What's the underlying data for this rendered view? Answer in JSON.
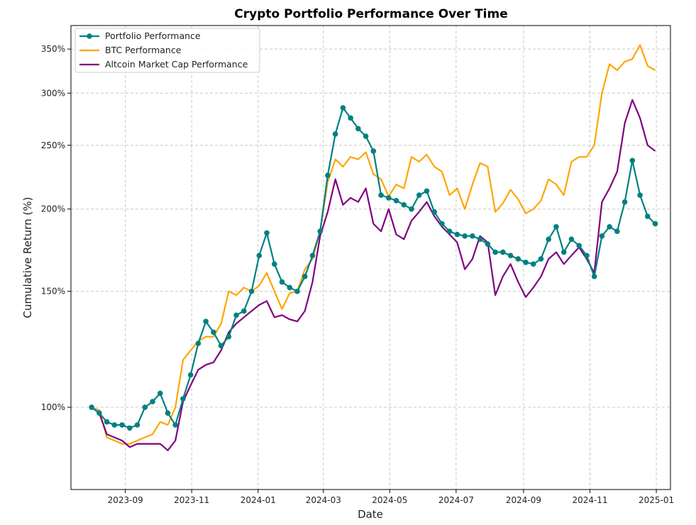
{
  "chart_data": {
    "type": "line",
    "title": "Crypto Portfolio Performance Over Time",
    "xlabel": "Date",
    "ylabel": "Cumulative Return (%)",
    "yscale": "log",
    "ylim": [
      75,
      380
    ],
    "xlim": [
      "2023-07-13",
      "2025-01-14"
    ],
    "grid": true,
    "legend_position": "top-left",
    "x_ticks": [
      {
        "value": "2023-09-01",
        "label": "2023-09"
      },
      {
        "value": "2023-11-01",
        "label": "2023-11"
      },
      {
        "value": "2024-01-01",
        "label": "2024-01"
      },
      {
        "value": "2024-03-01",
        "label": "2024-03"
      },
      {
        "value": "2024-05-01",
        "label": "2024-05"
      },
      {
        "value": "2024-07-01",
        "label": "2024-07"
      },
      {
        "value": "2024-09-01",
        "label": "2024-09"
      },
      {
        "value": "2024-11-01",
        "label": "2024-11"
      },
      {
        "value": "2025-01-01",
        "label": "2025-01"
      }
    ],
    "y_ticks": [
      {
        "value": 100,
        "label": "100%"
      },
      {
        "value": 150,
        "label": "150%"
      },
      {
        "value": 200,
        "label": "200%"
      },
      {
        "value": 250,
        "label": "250%"
      },
      {
        "value": 300,
        "label": "300%"
      },
      {
        "value": 350,
        "label": "350%"
      }
    ],
    "series": [
      {
        "name": "Portfolio Performance",
        "color": "#008080",
        "marker": "circle",
        "points": [
          [
            "2023-08-01",
            100
          ],
          [
            "2023-08-08",
            98
          ],
          [
            "2023-08-15",
            95
          ],
          [
            "2023-08-22",
            94
          ],
          [
            "2023-08-29",
            94
          ],
          [
            "2023-09-05",
            93
          ],
          [
            "2023-09-12",
            94
          ],
          [
            "2023-09-19",
            100
          ],
          [
            "2023-09-26",
            102
          ],
          [
            "2023-10-03",
            105
          ],
          [
            "2023-10-10",
            98
          ],
          [
            "2023-10-17",
            94
          ],
          [
            "2023-10-24",
            103
          ],
          [
            "2023-10-31",
            112
          ],
          [
            "2023-11-07",
            125
          ],
          [
            "2023-11-14",
            135
          ],
          [
            "2023-11-21",
            130
          ],
          [
            "2023-11-28",
            124
          ],
          [
            "2023-12-05",
            128
          ],
          [
            "2023-12-12",
            138
          ],
          [
            "2023-12-19",
            140
          ],
          [
            "2023-12-26",
            150
          ],
          [
            "2024-01-02",
            170
          ],
          [
            "2024-01-09",
            184
          ],
          [
            "2024-01-16",
            165
          ],
          [
            "2024-01-23",
            155
          ],
          [
            "2024-01-30",
            152
          ],
          [
            "2024-02-06",
            150
          ],
          [
            "2024-02-13",
            158
          ],
          [
            "2024-02-20",
            170
          ],
          [
            "2024-02-27",
            185
          ],
          [
            "2024-03-05",
            225
          ],
          [
            "2024-03-12",
            260
          ],
          [
            "2024-03-19",
            285
          ],
          [
            "2024-03-26",
            275
          ],
          [
            "2024-04-02",
            265
          ],
          [
            "2024-04-09",
            258
          ],
          [
            "2024-04-16",
            245
          ],
          [
            "2024-04-23",
            210
          ],
          [
            "2024-04-30",
            208
          ],
          [
            "2024-05-07",
            206
          ],
          [
            "2024-05-14",
            203
          ],
          [
            "2024-05-21",
            200
          ],
          [
            "2024-05-28",
            210
          ],
          [
            "2024-06-04",
            213
          ],
          [
            "2024-06-11",
            198
          ],
          [
            "2024-06-18",
            190
          ],
          [
            "2024-06-25",
            185
          ],
          [
            "2024-07-02",
            183
          ],
          [
            "2024-07-09",
            182
          ],
          [
            "2024-07-16",
            182
          ],
          [
            "2024-07-23",
            180
          ],
          [
            "2024-07-30",
            177
          ],
          [
            "2024-08-06",
            172
          ],
          [
            "2024-08-13",
            172
          ],
          [
            "2024-08-20",
            170
          ],
          [
            "2024-08-27",
            168
          ],
          [
            "2024-09-03",
            166
          ],
          [
            "2024-09-10",
            165
          ],
          [
            "2024-09-17",
            168
          ],
          [
            "2024-09-24",
            180
          ],
          [
            "2024-10-01",
            188
          ],
          [
            "2024-10-08",
            172
          ],
          [
            "2024-10-15",
            180
          ],
          [
            "2024-10-22",
            176
          ],
          [
            "2024-10-29",
            170
          ],
          [
            "2024-11-05",
            158
          ],
          [
            "2024-11-12",
            182
          ],
          [
            "2024-11-19",
            188
          ],
          [
            "2024-11-26",
            185
          ],
          [
            "2024-12-03",
            205
          ],
          [
            "2024-12-10",
            237
          ],
          [
            "2024-12-17",
            210
          ],
          [
            "2024-12-24",
            195
          ],
          [
            "2024-12-31",
            190
          ]
        ]
      },
      {
        "name": "BTC Performance",
        "color": "#FFA500",
        "marker": "none",
        "points": [
          [
            "2023-08-01",
            100
          ],
          [
            "2023-08-08",
            99
          ],
          [
            "2023-08-15",
            90
          ],
          [
            "2023-08-22",
            89
          ],
          [
            "2023-08-29",
            88
          ],
          [
            "2023-09-05",
            88
          ],
          [
            "2023-09-12",
            89
          ],
          [
            "2023-09-19",
            90
          ],
          [
            "2023-09-26",
            91
          ],
          [
            "2023-10-03",
            95
          ],
          [
            "2023-10-10",
            94
          ],
          [
            "2023-10-17",
            100
          ],
          [
            "2023-10-24",
            118
          ],
          [
            "2023-10-31",
            122
          ],
          [
            "2023-11-07",
            126
          ],
          [
            "2023-11-14",
            128
          ],
          [
            "2023-11-21",
            128
          ],
          [
            "2023-11-28",
            134
          ],
          [
            "2023-12-05",
            150
          ],
          [
            "2023-12-12",
            148
          ],
          [
            "2023-12-19",
            152
          ],
          [
            "2023-12-26",
            150
          ],
          [
            "2024-01-02",
            153
          ],
          [
            "2024-01-09",
            160
          ],
          [
            "2024-01-16",
            150
          ],
          [
            "2024-01-23",
            141
          ],
          [
            "2024-01-30",
            149
          ],
          [
            "2024-02-06",
            150
          ],
          [
            "2024-02-13",
            162
          ],
          [
            "2024-02-20",
            168
          ],
          [
            "2024-02-27",
            185
          ],
          [
            "2024-03-05",
            220
          ],
          [
            "2024-03-12",
            238
          ],
          [
            "2024-03-19",
            232
          ],
          [
            "2024-03-26",
            240
          ],
          [
            "2024-04-02",
            238
          ],
          [
            "2024-04-09",
            244
          ],
          [
            "2024-04-16",
            226
          ],
          [
            "2024-04-23",
            222
          ],
          [
            "2024-04-30",
            209
          ],
          [
            "2024-05-07",
            218
          ],
          [
            "2024-05-14",
            215
          ],
          [
            "2024-05-21",
            240
          ],
          [
            "2024-05-28",
            236
          ],
          [
            "2024-06-04",
            242
          ],
          [
            "2024-06-11",
            232
          ],
          [
            "2024-06-18",
            228
          ],
          [
            "2024-06-25",
            210
          ],
          [
            "2024-07-02",
            215
          ],
          [
            "2024-07-09",
            200
          ],
          [
            "2024-07-16",
            218
          ],
          [
            "2024-07-23",
            235
          ],
          [
            "2024-07-30",
            232
          ],
          [
            "2024-08-06",
            198
          ],
          [
            "2024-08-13",
            204
          ],
          [
            "2024-08-20",
            214
          ],
          [
            "2024-08-27",
            207
          ],
          [
            "2024-09-03",
            197
          ],
          [
            "2024-09-10",
            200
          ],
          [
            "2024-09-17",
            206
          ],
          [
            "2024-09-24",
            222
          ],
          [
            "2024-10-01",
            218
          ],
          [
            "2024-10-08",
            210
          ],
          [
            "2024-10-15",
            236
          ],
          [
            "2024-10-22",
            240
          ],
          [
            "2024-10-29",
            240
          ],
          [
            "2024-11-05",
            250
          ],
          [
            "2024-11-12",
            300
          ],
          [
            "2024-11-19",
            332
          ],
          [
            "2024-11-26",
            325
          ],
          [
            "2024-12-03",
            335
          ],
          [
            "2024-12-10",
            338
          ],
          [
            "2024-12-17",
            355
          ],
          [
            "2024-12-24",
            330
          ],
          [
            "2024-12-31",
            325
          ]
        ]
      },
      {
        "name": "Altcoin Market Cap Performance",
        "color": "#800080",
        "marker": "none",
        "points": [
          [
            "2023-08-01",
            100
          ],
          [
            "2023-08-08",
            98
          ],
          [
            "2023-08-15",
            91
          ],
          [
            "2023-08-22",
            90
          ],
          [
            "2023-08-29",
            89
          ],
          [
            "2023-09-05",
            87
          ],
          [
            "2023-09-12",
            88
          ],
          [
            "2023-09-19",
            88
          ],
          [
            "2023-09-26",
            88
          ],
          [
            "2023-10-03",
            88
          ],
          [
            "2023-10-10",
            86
          ],
          [
            "2023-10-17",
            89
          ],
          [
            "2023-10-24",
            102
          ],
          [
            "2023-10-31",
            108
          ],
          [
            "2023-11-07",
            114
          ],
          [
            "2023-11-14",
            116
          ],
          [
            "2023-11-21",
            117
          ],
          [
            "2023-11-28",
            122
          ],
          [
            "2023-12-05",
            130
          ],
          [
            "2023-12-12",
            134
          ],
          [
            "2023-12-19",
            137
          ],
          [
            "2023-12-26",
            140
          ],
          [
            "2024-01-02",
            143
          ],
          [
            "2024-01-09",
            145
          ],
          [
            "2024-01-16",
            137
          ],
          [
            "2024-01-23",
            138
          ],
          [
            "2024-01-30",
            136
          ],
          [
            "2024-02-06",
            135
          ],
          [
            "2024-02-13",
            140
          ],
          [
            "2024-02-20",
            155
          ],
          [
            "2024-02-27",
            182
          ],
          [
            "2024-03-05",
            198
          ],
          [
            "2024-03-12",
            222
          ],
          [
            "2024-03-19",
            203
          ],
          [
            "2024-03-26",
            208
          ],
          [
            "2024-04-02",
            205
          ],
          [
            "2024-04-09",
            215
          ],
          [
            "2024-04-16",
            190
          ],
          [
            "2024-04-23",
            185
          ],
          [
            "2024-04-30",
            200
          ],
          [
            "2024-05-07",
            183
          ],
          [
            "2024-05-14",
            180
          ],
          [
            "2024-05-21",
            192
          ],
          [
            "2024-05-28",
            198
          ],
          [
            "2024-06-04",
            205
          ],
          [
            "2024-06-11",
            195
          ],
          [
            "2024-06-18",
            188
          ],
          [
            "2024-06-25",
            183
          ],
          [
            "2024-07-02",
            178
          ],
          [
            "2024-07-09",
            162
          ],
          [
            "2024-07-16",
            168
          ],
          [
            "2024-07-23",
            182
          ],
          [
            "2024-07-30",
            178
          ],
          [
            "2024-08-06",
            148
          ],
          [
            "2024-08-13",
            158
          ],
          [
            "2024-08-20",
            165
          ],
          [
            "2024-08-27",
            155
          ],
          [
            "2024-09-03",
            147
          ],
          [
            "2024-09-10",
            152
          ],
          [
            "2024-09-17",
            158
          ],
          [
            "2024-09-24",
            168
          ],
          [
            "2024-10-01",
            172
          ],
          [
            "2024-10-08",
            165
          ],
          [
            "2024-10-15",
            170
          ],
          [
            "2024-10-22",
            175
          ],
          [
            "2024-10-29",
            168
          ],
          [
            "2024-11-05",
            160
          ],
          [
            "2024-11-12",
            205
          ],
          [
            "2024-11-19",
            215
          ],
          [
            "2024-11-26",
            228
          ],
          [
            "2024-12-03",
            270
          ],
          [
            "2024-12-10",
            293
          ],
          [
            "2024-12-17",
            275
          ],
          [
            "2024-12-24",
            250
          ],
          [
            "2024-12-31",
            245
          ]
        ]
      }
    ]
  }
}
